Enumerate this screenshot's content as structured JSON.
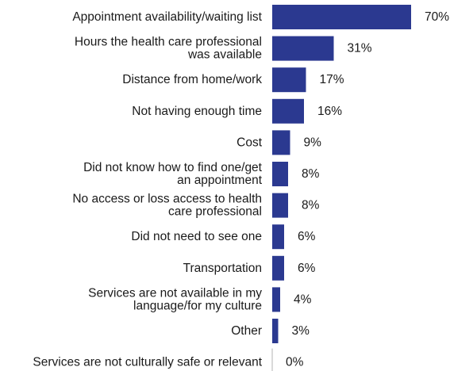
{
  "chart_data": {
    "type": "bar",
    "orientation": "horizontal",
    "categories": [
      "Appointment availability/waiting list",
      "Hours the health care professional was available",
      "Distance from home/work",
      "Not having enough time",
      "Cost",
      "Did not know how to find one/get an appointment",
      "No access or loss access to health care professional",
      "Did not need to see one",
      "Transportation",
      "Services are not available in my language/for my culture",
      "Other",
      "Services are not culturally safe or relevant"
    ],
    "category_lines": [
      [
        "Appointment availability/waiting list"
      ],
      [
        "Hours the health care professional",
        "was available"
      ],
      [
        "Distance from home/work"
      ],
      [
        "Not having enough time"
      ],
      [
        "Cost"
      ],
      [
        "Did not know how to find one/get",
        "an appointment"
      ],
      [
        "No access or loss access to health",
        "care professional"
      ],
      [
        "Did not need to see one"
      ],
      [
        "Transportation"
      ],
      [
        "Services are not available in my",
        "language/for my culture"
      ],
      [
        "Other"
      ],
      [
        "Services are not culturally safe or relevant"
      ]
    ],
    "values": [
      70,
      31,
      17,
      16,
      9,
      8,
      8,
      6,
      6,
      4,
      3,
      0
    ],
    "value_labels": [
      "70%",
      "31%",
      "17%",
      "16%",
      "9%",
      "8%",
      "8%",
      "6%",
      "6%",
      "4%",
      "3%",
      "0%"
    ],
    "unit": "%",
    "xlim": [
      0,
      70
    ],
    "grid": false,
    "legend": "none",
    "bar_color": "#2b3990",
    "axis_color": "#b3b3b3"
  }
}
